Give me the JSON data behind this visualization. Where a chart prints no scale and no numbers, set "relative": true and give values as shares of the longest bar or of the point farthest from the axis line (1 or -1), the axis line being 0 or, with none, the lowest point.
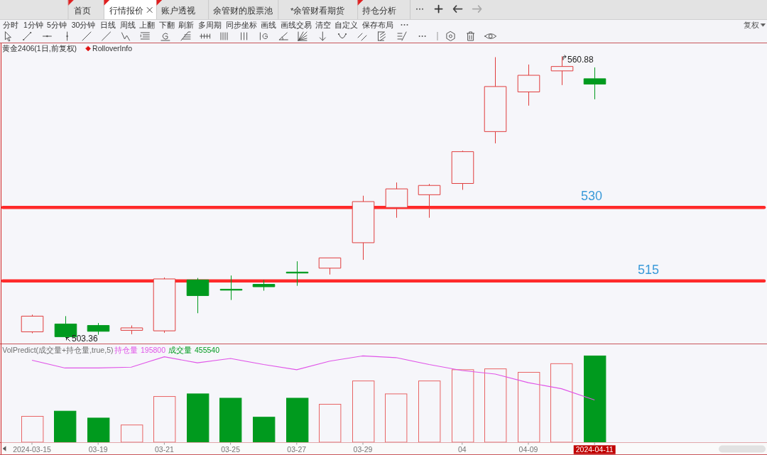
{
  "chart_data": [
    {
      "type": "other",
      "annotations": [
        "首页",
        "行情报价",
        "账户透视",
        "余管财的股票池",
        "*余管财看期货",
        "持仓分析",
        "分时",
        "1分钟",
        "5分钟",
        "30分钟",
        "日线",
        "周线",
        "上翻",
        "下翻",
        "刷新",
        "多周期",
        "同步坐标",
        "画线",
        "画线交易",
        "清空",
        "自定义",
        "保存布局",
        "复权"
      ]
    },
    {
      "type": "candlestick",
      "title": "黄金2406(1日,前复权)",
      "subtitle": "RolloverInfo",
      "tick_labels": false,
      "categories": [
        null,
        null,
        null,
        null,
        null,
        null,
        null,
        null,
        null,
        null,
        null,
        null,
        null,
        null,
        null,
        null,
        null,
        null
      ],
      "ohlc": [
        [
          504.6,
          508.1,
          504.3,
          507.8
        ],
        [
          506.2,
          507.8,
          503.36,
          503.6
        ],
        [
          505.9,
          506.4,
          504.0,
          504.7
        ],
        [
          504.9,
          505.9,
          504.1,
          505.4
        ],
        [
          504.8,
          515.7,
          504.4,
          515.4
        ],
        [
          515.2,
          515.6,
          508.4,
          512.0
        ],
        [
          513.3,
          516.1,
          511.1,
          513.1
        ],
        [
          514.3,
          515.2,
          513.0,
          513.8
        ],
        [
          516.8,
          519.0,
          514.0,
          516.6
        ],
        [
          517.6,
          519.7,
          516.3,
          519.7
        ],
        [
          522.8,
          532.4,
          519.3,
          531.2
        ],
        [
          530.0,
          535.1,
          527.9,
          533.8
        ],
        [
          532.6,
          534.8,
          527.9,
          534.5
        ],
        [
          534.9,
          541.6,
          533.6,
          541.4
        ],
        [
          545.5,
          560.7,
          543.1,
          554.7
        ],
        [
          553.6,
          559.2,
          550.8,
          557.0
        ],
        [
          557.9,
          560.88,
          555.0,
          558.8
        ],
        [
          556.3,
          558.6,
          552.1,
          555.2
        ]
      ],
      "colors": [
        "#e03c3c",
        "#009a1e",
        "#009a1e",
        "#e03c3c",
        "#e03c3c",
        "#009a1e",
        "#009a1e",
        "#009a1e",
        "#009a1e",
        "#e03c3c",
        "#e03c3c",
        "#e03c3c",
        "#e03c3c",
        "#e03c3c",
        "#e03c3c",
        "#e03c3c",
        "#e03c3c",
        "#009a1e"
      ],
      "ref_lines": [
        {
          "axis": "y",
          "value": 530,
          "label": "530",
          "color": "#ff2a2a"
        },
        {
          "axis": "y",
          "value": 515,
          "label": "515",
          "color": "#ff2a2a"
        }
      ],
      "annotations": [
        "560.88",
        "503.36"
      ]
    },
    {
      "type": "bar",
      "title": "VolPredict(成交量+持仓量,true,5)",
      "relative": true,
      "tick_labels": "x",
      "legend": "top left",
      "categories": [
        "2024-03-15",
        null,
        "03-19",
        null,
        "03-21",
        null,
        "03-25",
        null,
        "03-27",
        null,
        "03-29",
        null,
        null,
        "04",
        null,
        "04-09",
        null,
        "2024-04-11"
      ],
      "series": [
        {
          "name": "持仓量",
          "type": "line",
          "color": "#e055e8",
          "values": [
            0.95,
            0.86,
            0.86,
            0.87,
            0.99,
            0.92,
            0.97,
            0.9,
            0.84,
            0.94,
            1.0,
            0.98,
            0.9,
            0.83,
            0.79,
            0.69,
            0.62,
            0.49
          ]
        },
        {
          "name": "成交量",
          "type": "bar",
          "colors": [
            "#e86464",
            "#009a1e",
            "#009a1e",
            "#e86464",
            "#e86464",
            "#009a1e",
            "#009a1e",
            "#009a1e",
            "#009a1e",
            "#e86464",
            "#e86464",
            "#e86464",
            "#e86464",
            "#e86464",
            "#e86464",
            "#e86464",
            "#e86464",
            "#009a1e"
          ],
          "values": [
            0.3,
            0.36,
            0.28,
            0.2,
            0.53,
            0.56,
            0.51,
            0.29,
            0.51,
            0.44,
            0.71,
            0.56,
            0.71,
            0.84,
            0.85,
            0.81,
            0.91,
            1
          ]
        }
      ],
      "annotations": [
        "195800",
        "455540"
      ]
    }
  ]
}
